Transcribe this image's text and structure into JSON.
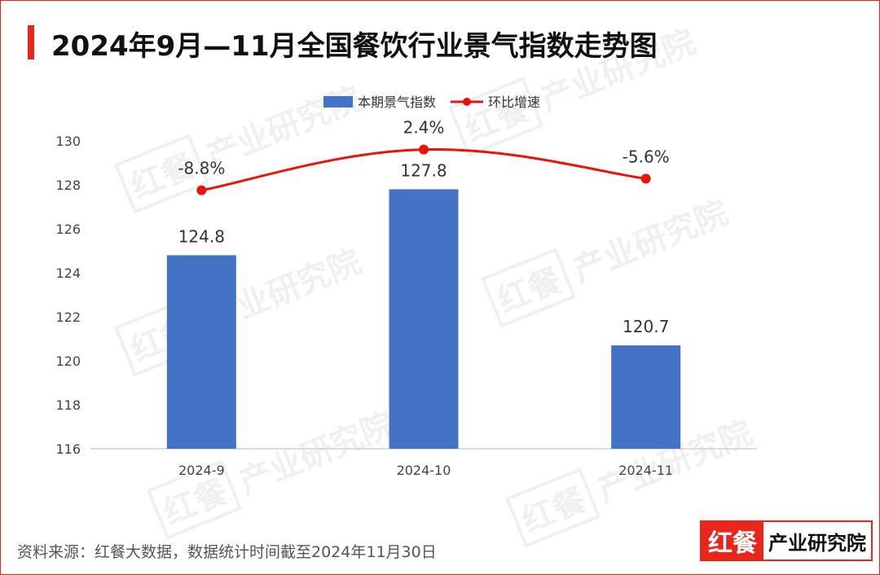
{
  "title": "2024年9月—11月全国餐饮行业景气指数走势图",
  "watermark": {
    "left": "红餐",
    "right": "产业研究院"
  },
  "source": "资料来源：红餐大数据，数据统计时间截至2024年11月30日",
  "logo": {
    "left": "红餐",
    "right": "产业研究院"
  },
  "colors": {
    "bar": "#4472c4",
    "line": "#e8140c",
    "accent": "#e8261c"
  },
  "chart_data": {
    "type": "bar+line",
    "categories": [
      "2024-9",
      "2024-10",
      "2024-11"
    ],
    "series": [
      {
        "name": "本期景气指数",
        "type": "bar",
        "values": [
          124.8,
          127.8,
          120.7
        ],
        "labels": [
          "124.8",
          "127.8",
          "120.7"
        ]
      },
      {
        "name": "环比增速",
        "type": "line",
        "values": [
          -8.8,
          2.4,
          -5.6
        ],
        "labels": [
          "-8.8%",
          "2.4%",
          "-5.6%"
        ]
      }
    ],
    "ylim": [
      116,
      130
    ],
    "yticks": [
      "116",
      "118",
      "120",
      "122",
      "124",
      "126",
      "128",
      "130"
    ],
    "legend": "top-center",
    "grid": false
  }
}
